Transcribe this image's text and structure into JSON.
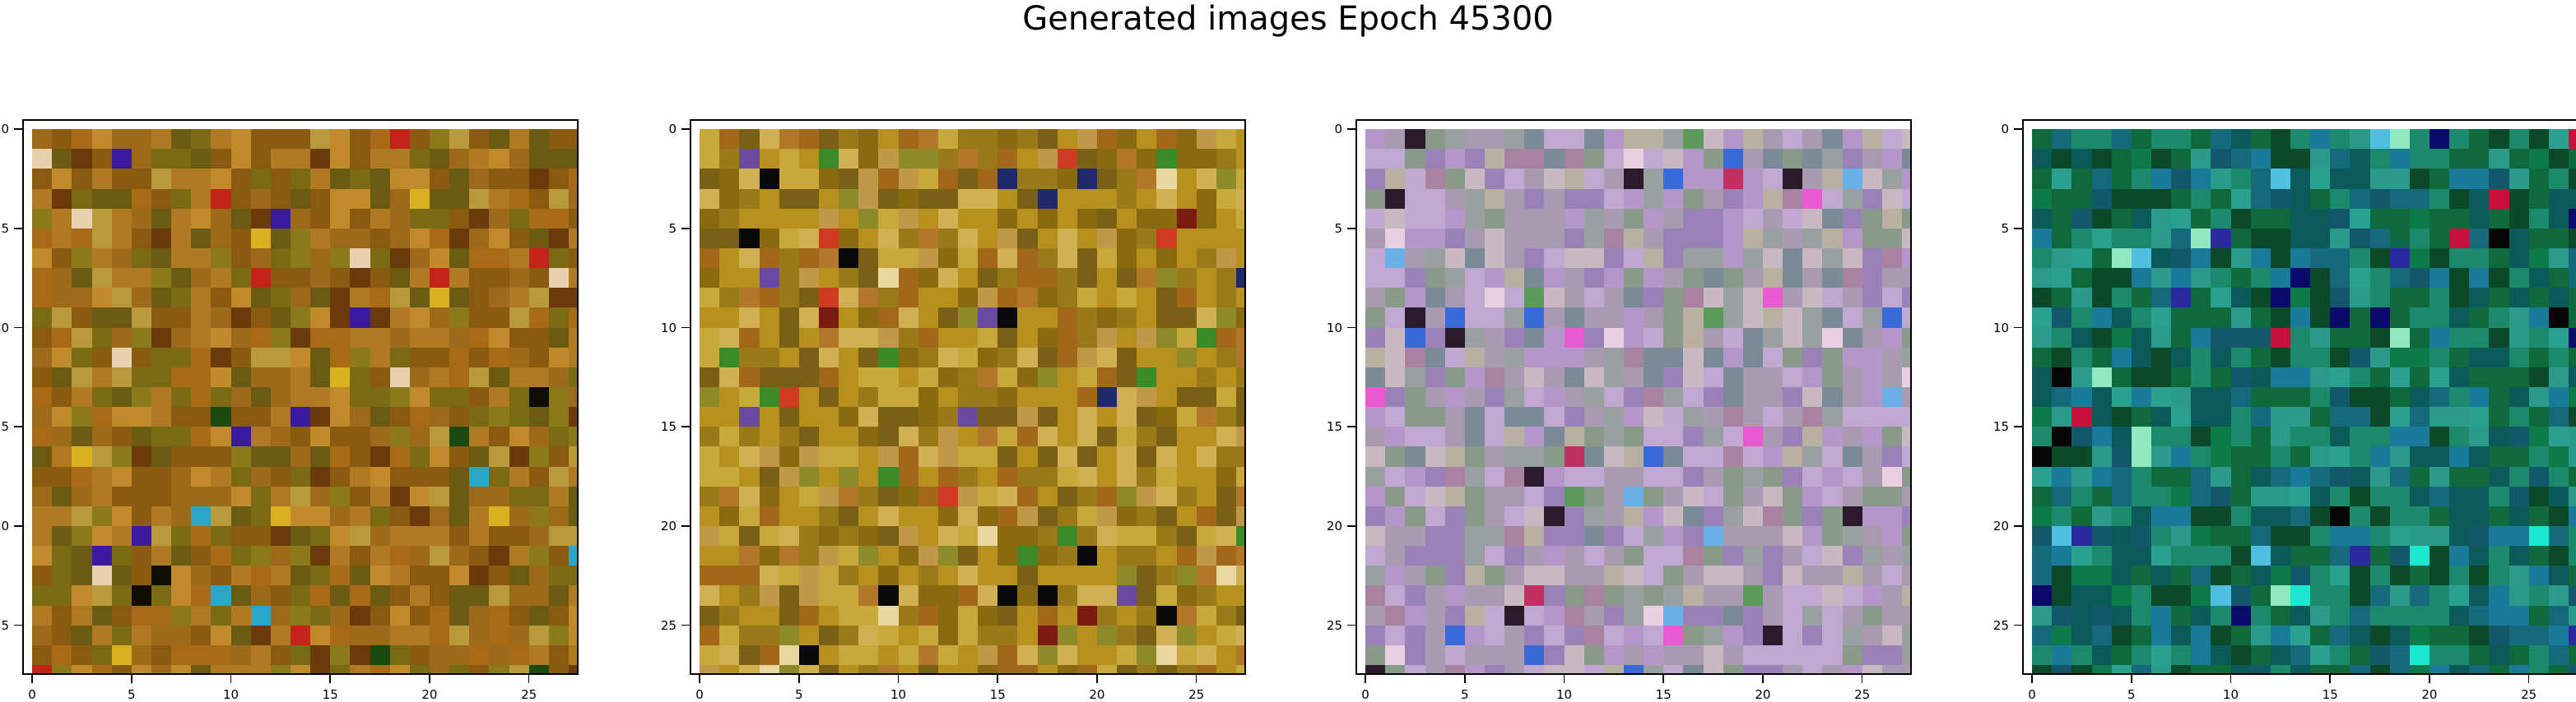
{
  "figure": {
    "title": "Generated images Epoch 45300"
  },
  "chart_data": [
    {
      "type": "heatmap",
      "title": "",
      "xlabel": "",
      "ylabel": "",
      "grid_size": [
        28,
        28
      ],
      "xlim": [
        -0.5,
        27.5
      ],
      "ylim": [
        27.5,
        -0.5
      ],
      "xticks": [
        0,
        5,
        10,
        15,
        20,
        25
      ],
      "yticks": [
        0,
        5,
        10,
        15,
        20,
        25
      ],
      "colormap": "rgb",
      "palette": [
        "#8a5a10",
        "#9c6a1a",
        "#b07a22",
        "#7a6a14",
        "#6a5a12",
        "#c08a2a",
        "#a86a14",
        "#8a7a1a",
        "#b89a3a",
        "#6a3a0a"
      ],
      "accents": [
        "#d8b020",
        "#c2241a",
        "#1a4a12",
        "#3a1aa0",
        "#e8d0b0",
        "#2aa6c8",
        "#0e0e04"
      ],
      "palette_weights": [
        4,
        3,
        3,
        2,
        2,
        2,
        2,
        1,
        1,
        1
      ],
      "accent_rate": 0.05,
      "seed": 11
    },
    {
      "type": "heatmap",
      "title": "",
      "xlabel": "",
      "ylabel": "",
      "grid_size": [
        28,
        28
      ],
      "xlim": [
        -0.5,
        27.5
      ],
      "ylim": [
        27.5,
        -0.5
      ],
      "xticks": [
        0,
        5,
        10,
        15,
        20,
        25
      ],
      "yticks": [
        0,
        5,
        10,
        15,
        20,
        25
      ],
      "colormap": "rgb",
      "palette": [
        "#b8901e",
        "#9a7a18",
        "#c8a83a",
        "#a06818",
        "#8a6a10",
        "#d0b050",
        "#7a6014",
        "#b07828",
        "#c09848",
        "#8e8a2a"
      ],
      "accents": [
        "#e8d8a0",
        "#7a1a10",
        "#1e2a6a",
        "#3a8a2a",
        "#6a4aa0",
        "#0a0a0a",
        "#d03a20"
      ],
      "palette_weights": [
        4,
        3,
        3,
        2,
        2,
        2,
        2,
        1,
        1,
        1
      ],
      "accent_rate": 0.06,
      "seed": 23
    },
    {
      "type": "heatmap",
      "title": "",
      "xlabel": "",
      "ylabel": "",
      "grid_size": [
        28,
        28
      ],
      "xlim": [
        -0.5,
        27.5
      ],
      "ylim": [
        27.5,
        -0.5
      ],
      "xticks": [
        0,
        5,
        10,
        15,
        20,
        25
      ],
      "yticks": [
        0,
        5,
        10,
        15,
        20,
        25
      ],
      "colormap": "rgb",
      "palette": [
        "#a89ab0",
        "#9a82b8",
        "#c0a8d0",
        "#8a9a8a",
        "#b496c8",
        "#9aa0a0",
        "#c8b8c0",
        "#7a8a98",
        "#a882a0",
        "#b8b0a0"
      ],
      "accents": [
        "#3a6ad8",
        "#e85ad0",
        "#2a1a2a",
        "#6ab0e8",
        "#e8d0e0",
        "#5a9a5a",
        "#c03060"
      ],
      "palette_weights": [
        4,
        3,
        3,
        2,
        2,
        2,
        2,
        1,
        1,
        1
      ],
      "accent_rate": 0.07,
      "seed": 37
    },
    {
      "type": "heatmap",
      "title": "",
      "xlabel": "",
      "ylabel": "",
      "grid_size": [
        28,
        28
      ],
      "xlim": [
        -0.5,
        27.5
      ],
      "ylim": [
        27.5,
        -0.5
      ],
      "xticks": [
        0,
        5,
        10,
        15,
        20,
        25
      ],
      "yticks": [
        0,
        5,
        10,
        15,
        20,
        25
      ],
      "colormap": "rgb",
      "palette": [
        "#0e6a3a",
        "#1a8a6a",
        "#0a5a5a",
        "#2a9a8a",
        "#146a7a",
        "#0a4a2a",
        "#1a7a9a",
        "#2aa090",
        "#12586a",
        "#0e7a4a"
      ],
      "accents": [
        "#1ae8d0",
        "#0a0a6a",
        "#c8103a",
        "#50c0e0",
        "#2a2aa0",
        "#90e8c0",
        "#060606"
      ],
      "palette_weights": [
        4,
        3,
        3,
        2,
        2,
        2,
        2,
        1,
        1,
        1
      ],
      "accent_rate": 0.07,
      "seed": 53
    }
  ]
}
